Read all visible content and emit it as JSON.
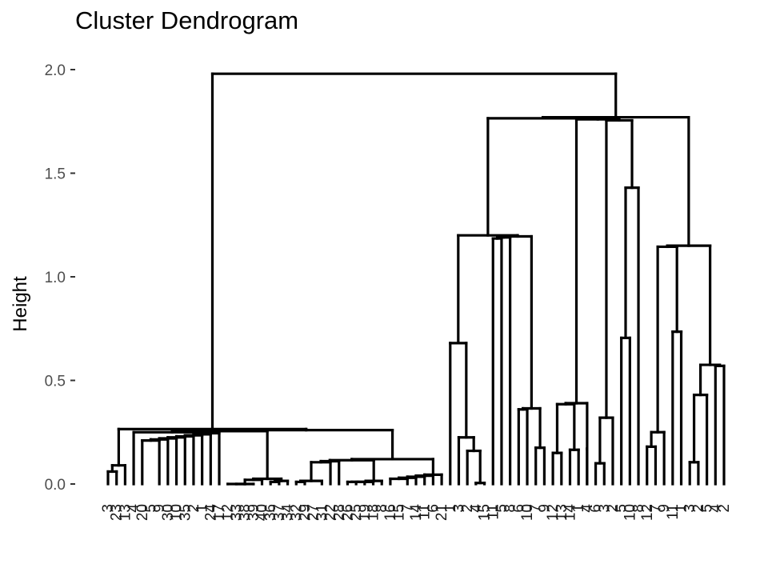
{
  "chart_data": {
    "type": "dendrogram",
    "title": "Cluster Dendrogram",
    "ylabel": "Height",
    "xlabel": "",
    "ylim": [
      0,
      2.0
    ],
    "y_ticks": [
      0.0,
      0.5,
      1.0,
      1.5,
      2.0
    ],
    "y_tick_labels": [
      "0.0",
      "0.5",
      "1.0",
      "1.5",
      "2.0"
    ],
    "grid": false,
    "leaf_labels": [
      "3",
      "23",
      "13",
      "4",
      "20",
      "5",
      "9",
      "30",
      "10",
      "35",
      "2",
      "1",
      "24",
      "17",
      "12",
      "33",
      "38",
      "39",
      "40",
      "36",
      "37",
      "34",
      "32",
      "29",
      "27",
      "31",
      "22",
      "28",
      "26",
      "25",
      "19",
      "18",
      "8",
      "16",
      "15",
      "7",
      "14",
      "11",
      "6",
      "21",
      "1",
      "3",
      "2",
      "4",
      "15",
      "11",
      "5",
      "8",
      "6",
      "10",
      "7",
      "9",
      "12",
      "13",
      "14",
      "1",
      "4",
      "6",
      "3",
      "2",
      "5",
      "10",
      "8",
      "12",
      "7",
      "9",
      "11",
      "1",
      "3",
      "2",
      "5",
      "4",
      "2"
    ],
    "merge_heights": [
      0.06,
      0.09,
      0.21,
      0.085,
      0.03,
      0.02,
      0.01,
      0.01,
      0.005,
      0.005,
      0.0,
      0.0,
      0.0,
      0.02,
      0.01,
      0.005,
      0.005,
      0.02,
      0.01,
      0.005,
      0.105,
      0.06,
      0.01,
      0.01,
      0.01,
      0.005,
      0.005,
      0.025,
      0.015,
      0.005,
      0.005,
      0.03,
      0.02,
      0.01,
      0.01,
      0.005,
      0.16,
      0.225,
      0.68,
      1.185,
      0.26,
      0.36,
      0.175,
      0.04,
      0.53,
      0.94,
      0.15,
      0.165,
      0.385,
      0.17,
      0.07,
      0.1,
      0.32,
      0.705,
      1.43,
      1.755,
      0.425,
      0.19,
      0.18,
      0.25,
      0.735,
      1.145,
      0.105,
      0.43,
      0.57,
      0.09,
      0.36,
      0.085,
      0.205,
      0.13,
      0.43,
      1.37,
      1.475,
      1.915,
      1.97,
      1.98
    ]
  }
}
